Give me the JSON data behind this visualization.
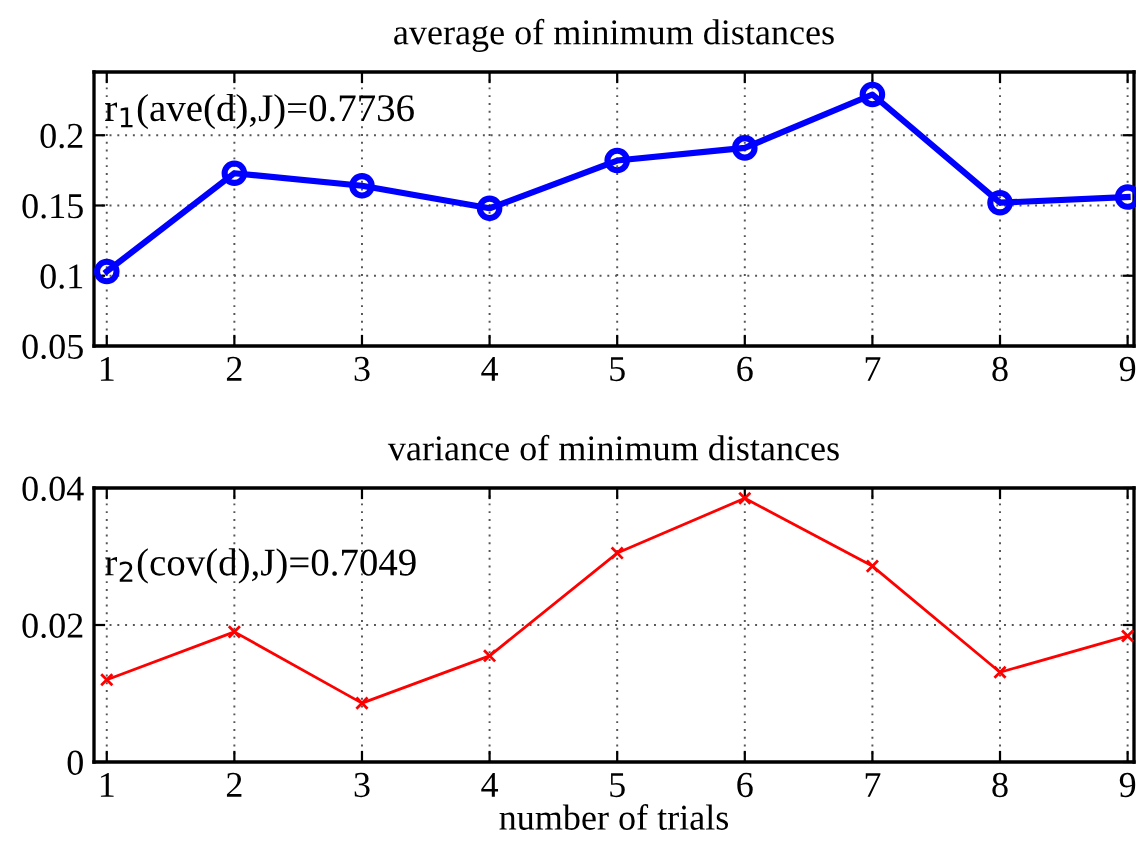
{
  "chart_data": [
    {
      "type": "line",
      "title": "average of minimum distances",
      "x": [
        1,
        2,
        3,
        4,
        5,
        6,
        7,
        8,
        9
      ],
      "series": [
        {
          "color": "#0000ff",
          "values": [
            0.103,
            0.173,
            0.164,
            0.148,
            0.182,
            0.191,
            0.229,
            0.152,
            0.156
          ]
        }
      ],
      "xlim": [
        0.9,
        9.05
      ],
      "xticks": [
        1,
        2,
        3,
        4,
        5,
        6,
        7,
        8,
        9
      ],
      "ylim": [
        0.05,
        0.245
      ],
      "yticks": [
        0.05,
        0.1,
        0.15,
        0.2
      ],
      "grid": true,
      "marker": "circle",
      "line_style": "solid",
      "annotations": [
        "r$_{1}$(ave(d),J)=0.7736"
      ]
    },
    {
      "type": "line",
      "title": "variance of minimum distances",
      "xlabel": "number of trials",
      "x": [
        1,
        2,
        3,
        4,
        5,
        6,
        7,
        8,
        9
      ],
      "series": [
        {
          "color": "#ff0000",
          "values": [
            0.012,
            0.019,
            0.0086,
            0.0155,
            0.0305,
            0.0385,
            0.0286,
            0.0131,
            0.0184
          ]
        }
      ],
      "xlim": [
        0.9,
        9.05
      ],
      "xticks": [
        1,
        2,
        3,
        4,
        5,
        6,
        7,
        8,
        9
      ],
      "ylim": [
        0,
        0.04
      ],
      "yticks": [
        0,
        0.02,
        0.04
      ],
      "grid": true,
      "marker": "cross",
      "line_style": "solid",
      "annotations": [
        "r$_{2}$(cov(d),J)=0.7049"
      ]
    }
  ]
}
